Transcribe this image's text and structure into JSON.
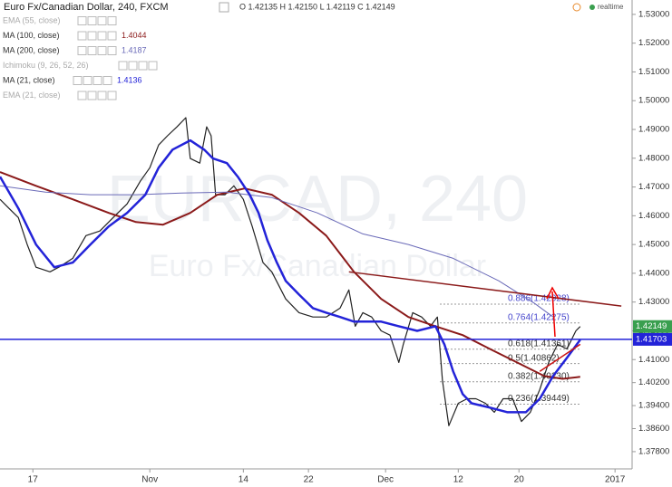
{
  "chart_data": {
    "type": "line",
    "title": "Euro Fx/Canadian Dollar, 240, FXCM",
    "ohlc_text": "O 1.42135 H 1.42150 L 1.42119 C 1.42149",
    "status": "realtime",
    "watermark": [
      "EURCAD, 240",
      "Euro Fx/Canadian Dollar"
    ],
    "hidden_indicators": [
      "EMA (55, close)",
      "Ichimoku (9, 26, 52, 26)",
      "EMA (21, close)"
    ],
    "xlim": [
      0,
      100
    ],
    "xticks": [
      {
        "value": 5.2,
        "label": "17"
      },
      {
        "value": 23.7,
        "label": "Nov"
      },
      {
        "value": 38.5,
        "label": "14"
      },
      {
        "value": 48.8,
        "label": "22"
      },
      {
        "value": 61,
        "label": "Dec"
      },
      {
        "value": 72.5,
        "label": "12"
      },
      {
        "value": 82.1,
        "label": "20"
      },
      {
        "value": 97.3,
        "label": "2017"
      }
    ],
    "ylim": [
      1.372,
      1.535
    ],
    "yticks": [
      {
        "value": 1.53,
        "label": "1.53000"
      },
      {
        "value": 1.52,
        "label": "1.52000"
      },
      {
        "value": 1.51,
        "label": "1.51000"
      },
      {
        "value": 1.5,
        "label": "1.50000"
      },
      {
        "value": 1.49,
        "label": "1.49000"
      },
      {
        "value": 1.48,
        "label": "1.48000"
      },
      {
        "value": 1.47,
        "label": "1.47000"
      },
      {
        "value": 1.46,
        "label": "1.46000"
      },
      {
        "value": 1.45,
        "label": "1.45000"
      },
      {
        "value": 1.44,
        "label": "1.44000"
      },
      {
        "value": 1.43,
        "label": "1.43000"
      },
      {
        "value": 1.42,
        "label": "1.42000"
      },
      {
        "value": 1.41,
        "label": "1.41000"
      },
      {
        "value": 1.402,
        "label": "1.40200"
      },
      {
        "value": 1.394,
        "label": "1.39400"
      },
      {
        "value": 1.386,
        "label": "1.38600"
      },
      {
        "value": 1.378,
        "label": "1.37800"
      }
    ],
    "series": [
      {
        "color": "#222222",
        "width": 1.2,
        "x": [
          0,
          1.4,
          2.9,
          4.3,
          5.7,
          7.9,
          9.3,
          11.5,
          13.6,
          15.8,
          17.9,
          20.1,
          22.2,
          23.7,
          25.1,
          26.5,
          28,
          29.4,
          30.1,
          31.6,
          32.7,
          33.4,
          34.1,
          35.6,
          37,
          38.5,
          39.9,
          41.6,
          43,
          45.2,
          47.3,
          49.5,
          51.6,
          53.8,
          55.2,
          56.2,
          57.4,
          58.8,
          60.3,
          61.7,
          63.1,
          63.8,
          65.3,
          66.7,
          68.1,
          69.2,
          70,
          71,
          72.5,
          73.9,
          75.3,
          76.8,
          78.2,
          79.6,
          81.1,
          82.5,
          83.9,
          85.4,
          86.8,
          88.2,
          89.7,
          91.1,
          91.8
        ],
        "values": [
          1.4657,
          1.4626,
          1.4594,
          1.45,
          1.4421,
          1.4405,
          1.4421,
          1.4452,
          1.4531,
          1.4547,
          1.4594,
          1.4641,
          1.472,
          1.4767,
          1.4846,
          1.4878,
          1.4909,
          1.4941,
          1.4799,
          1.4783,
          1.4909,
          1.4878,
          1.4673,
          1.4673,
          1.4704,
          1.4657,
          1.4563,
          1.4437,
          1.4405,
          1.4311,
          1.4263,
          1.4248,
          1.4248,
          1.4279,
          1.4342,
          1.4216,
          1.4263,
          1.4248,
          1.42,
          1.4185,
          1.409,
          1.4153,
          1.4263,
          1.4248,
          1.4216,
          1.4248,
          1.4027,
          1.387,
          1.3948,
          1.3964,
          1.3964,
          1.3948,
          1.3917,
          1.3964,
          1.3964,
          1.3885,
          1.3917,
          1.3996,
          1.409,
          1.4153,
          1.4137,
          1.42,
          1.4215
        ]
      },
      {
        "name": "MA (100, close)",
        "legend_value": 1.4044,
        "color": "#8b1a1a",
        "width": 2,
        "x": [
          0,
          5.7,
          11.5,
          17.2,
          21.5,
          25.8,
          30.1,
          34.4,
          38.7,
          43,
          47.3,
          51.6,
          56,
          60.3,
          64.6,
          68.9,
          73.2,
          77.5,
          81.8,
          86.1,
          89,
          91.8
        ],
        "values": [
          1.4752,
          1.4704,
          1.4657,
          1.461,
          1.4578,
          1.4569,
          1.461,
          1.4673,
          1.4695,
          1.4673,
          1.461,
          1.4531,
          1.4405,
          1.4311,
          1.4248,
          1.4216,
          1.4185,
          1.4137,
          1.409,
          1.4043,
          1.4033,
          1.404
        ]
      },
      {
        "name": "MA (200, close)",
        "legend_value": 1.4187,
        "color": "#6a6ab8",
        "width": 1,
        "x": [
          0,
          7.2,
          14.3,
          21.5,
          28.7,
          35.9,
          43,
          50.2,
          57.4,
          64.6,
          71.7,
          78.9,
          84.6,
          87.5
        ],
        "values": [
          1.4704,
          1.4682,
          1.4673,
          1.4673,
          1.4679,
          1.4682,
          1.4663,
          1.461,
          1.4537,
          1.45,
          1.4452,
          1.4374,
          1.4295,
          1.4248
        ]
      },
      {
        "name": "MA (21, close)",
        "legend_value": 1.4136,
        "color": "#2323d8",
        "width": 2.5,
        "x": [
          0,
          2.9,
          5.7,
          8.6,
          11.5,
          14.3,
          17.2,
          20.1,
          23,
          25.1,
          27.3,
          30.1,
          32.3,
          33.7,
          35.9,
          37.6,
          39.5,
          40.9,
          42.3,
          43.8,
          45.2,
          47.3,
          49.5,
          51.6,
          53.8,
          56,
          58.1,
          60.3,
          63.1,
          66,
          68.9,
          70.3,
          71.7,
          73.2,
          74.6,
          77.5,
          80.3,
          83.2,
          85.4,
          87.5,
          89.7,
          91.8
        ],
        "values": [
          1.4736,
          1.4626,
          1.45,
          1.4421,
          1.4437,
          1.45,
          1.4563,
          1.461,
          1.4673,
          1.4767,
          1.483,
          1.4862,
          1.483,
          1.4799,
          1.4783,
          1.4736,
          1.4673,
          1.461,
          1.4515,
          1.4437,
          1.4374,
          1.4326,
          1.4279,
          1.4263,
          1.4248,
          1.4232,
          1.4232,
          1.4232,
          1.4216,
          1.42,
          1.4216,
          1.4153,
          1.4059,
          1.398,
          1.3948,
          1.3933,
          1.3917,
          1.3917,
          1.3964,
          1.4043,
          1.4106,
          1.4169
        ]
      }
    ],
    "trendlines": [
      {
        "color": "#8b1a1a",
        "x": [
          55.2,
          98.3
        ],
        "values": [
          1.4405,
          1.4286
        ]
      },
      {
        "color": "#cc1111",
        "x": [
          85.4,
          91.8
        ],
        "values": [
          1.4059,
          1.4153
        ]
      }
    ],
    "hlines": [
      {
        "value": 1.41703,
        "label": "1.41703",
        "color": "#2323d8"
      }
    ],
    "last_price": {
      "value": 1.42149,
      "label": "1.42149",
      "color": "#3a9f4f"
    },
    "fib_levels": [
      {
        "value": 1.42928,
        "label": "0.886(1.42928)",
        "color": "#4444cc"
      },
      {
        "value": 1.42275,
        "label": "0.764(1.42275)",
        "color": "#4444cc"
      },
      {
        "value": 1.41361,
        "label": "0.618(1.41361)",
        "color": "#333333"
      },
      {
        "value": 1.40862,
        "label": "0.5(1.40862)",
        "color": "#333333"
      },
      {
        "value": 1.4023,
        "label": "0.382(1.40230)",
        "color": "#333333"
      },
      {
        "value": 1.39449,
        "label": "0.236(1.39449)",
        "color": "#333333"
      }
    ]
  }
}
